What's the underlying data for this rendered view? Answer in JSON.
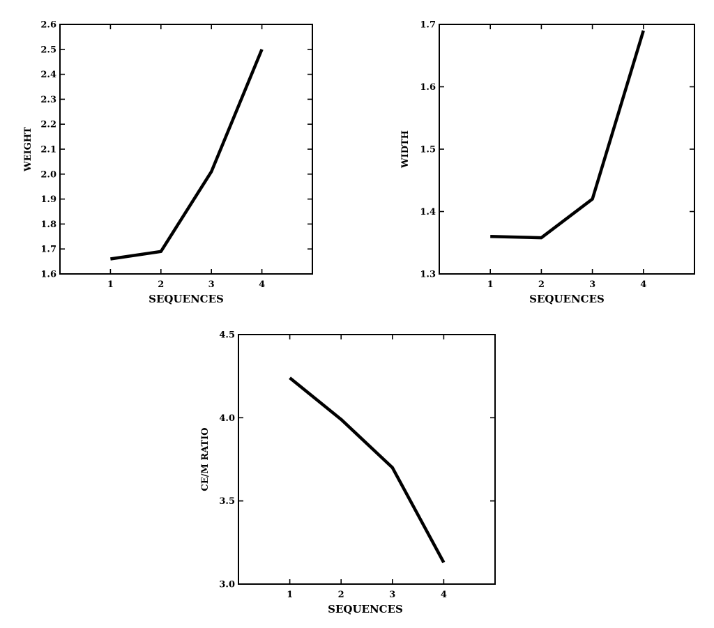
{
  "chart_data": [
    {
      "type": "line",
      "xlabel": "SEQUENCES",
      "ylabel": "WEIGHT",
      "x": [
        1,
        2,
        3,
        4
      ],
      "values": [
        1.66,
        1.69,
        2.01,
        2.5
      ],
      "xticks": [
        "1",
        "2",
        "3",
        "4"
      ],
      "yticks": [
        "1.6",
        "1.7",
        "1.8",
        "1.9",
        "2.0",
        "2.1",
        "2.2",
        "2.3",
        "2.4",
        "2.5",
        "2.6"
      ],
      "xlim": [
        0,
        5
      ],
      "ylim": [
        1.6,
        2.6
      ],
      "grid": false
    },
    {
      "type": "line",
      "xlabel": "SEQUENCES",
      "ylabel": "WIDTH",
      "x": [
        1,
        2,
        3,
        4
      ],
      "values": [
        1.36,
        1.358,
        1.42,
        1.69
      ],
      "xticks": [
        "1",
        "2",
        "3",
        "4"
      ],
      "yticks": [
        "1.3",
        "1.4",
        "1.5",
        "1.6",
        "1.7"
      ],
      "xlim": [
        0,
        5
      ],
      "ylim": [
        1.3,
        1.7
      ],
      "grid": false
    },
    {
      "type": "line",
      "xlabel": "SEQUENCES",
      "ylabel": "CE/M RATIO",
      "x": [
        1,
        2,
        3,
        4
      ],
      "values": [
        4.24,
        3.99,
        3.7,
        3.13
      ],
      "xticks": [
        "1",
        "2",
        "3",
        "4"
      ],
      "yticks": [
        "3.0",
        "3.5",
        "4.0",
        "4.5"
      ],
      "xlim": [
        0,
        5
      ],
      "ylim": [
        3.0,
        4.5
      ],
      "grid": false
    }
  ]
}
